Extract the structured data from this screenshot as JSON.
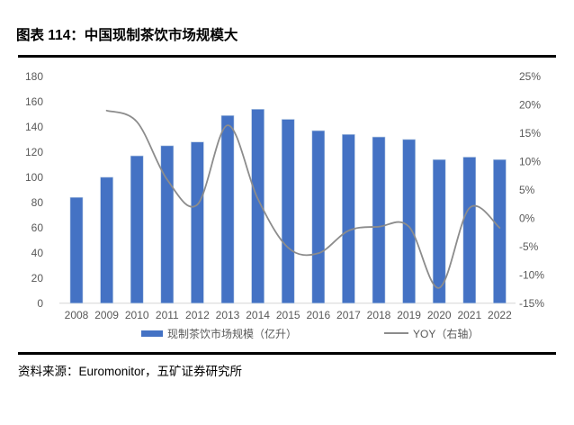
{
  "header": {
    "title": "图表 114：中国现制茶饮市场规模大"
  },
  "footer": {
    "source": "资料来源：Euromonitor，五矿证券研究所"
  },
  "legend": {
    "bar_label": "现制茶饮市场规模（亿升）",
    "line_label": "YOY（右轴）"
  },
  "colors": {
    "bar": "#4472C4",
    "bar_edge": "#b8cce4",
    "line": "#8C8C8C",
    "axis_line": "#d6d6d6",
    "tick_text": "#595959",
    "rule": "#000000"
  },
  "chart_data": {
    "type": "bar",
    "title": "图表 114：中国现制茶饮市场规模大",
    "categories": [
      "2008",
      "2009",
      "2010",
      "2011",
      "2012",
      "2013",
      "2014",
      "2015",
      "2016",
      "2017",
      "2018",
      "2019",
      "2020",
      "2021",
      "2022"
    ],
    "series": [
      {
        "name": "现制茶饮市场规模（亿升）",
        "type": "bar",
        "axis": "left",
        "values": [
          84,
          100,
          117,
          125,
          128,
          149,
          154,
          146,
          137,
          134,
          132,
          130,
          114,
          116,
          114
        ]
      },
      {
        "name": "YOY（右轴）",
        "type": "line",
        "axis": "right",
        "start_category": "2009",
        "values_pct": [
          19.0,
          17.0,
          6.8,
          2.4,
          16.4,
          3.4,
          -5.2,
          -6.2,
          -2.2,
          -1.5,
          -1.5,
          -12.3,
          1.8,
          -1.7
        ]
      }
    ],
    "left_axis": {
      "range": [
        0,
        180
      ],
      "ticks": [
        0,
        20,
        40,
        60,
        80,
        100,
        120,
        140,
        160,
        180
      ]
    },
    "right_axis": {
      "range_pct": [
        -15,
        25
      ],
      "tick_labels": [
        "25%",
        "20%",
        "15%",
        "10%",
        "5%",
        "0%",
        "-5%",
        "-10%",
        "-15%"
      ]
    },
    "grid": false,
    "legend_position": "bottom",
    "line_smooth": true
  }
}
